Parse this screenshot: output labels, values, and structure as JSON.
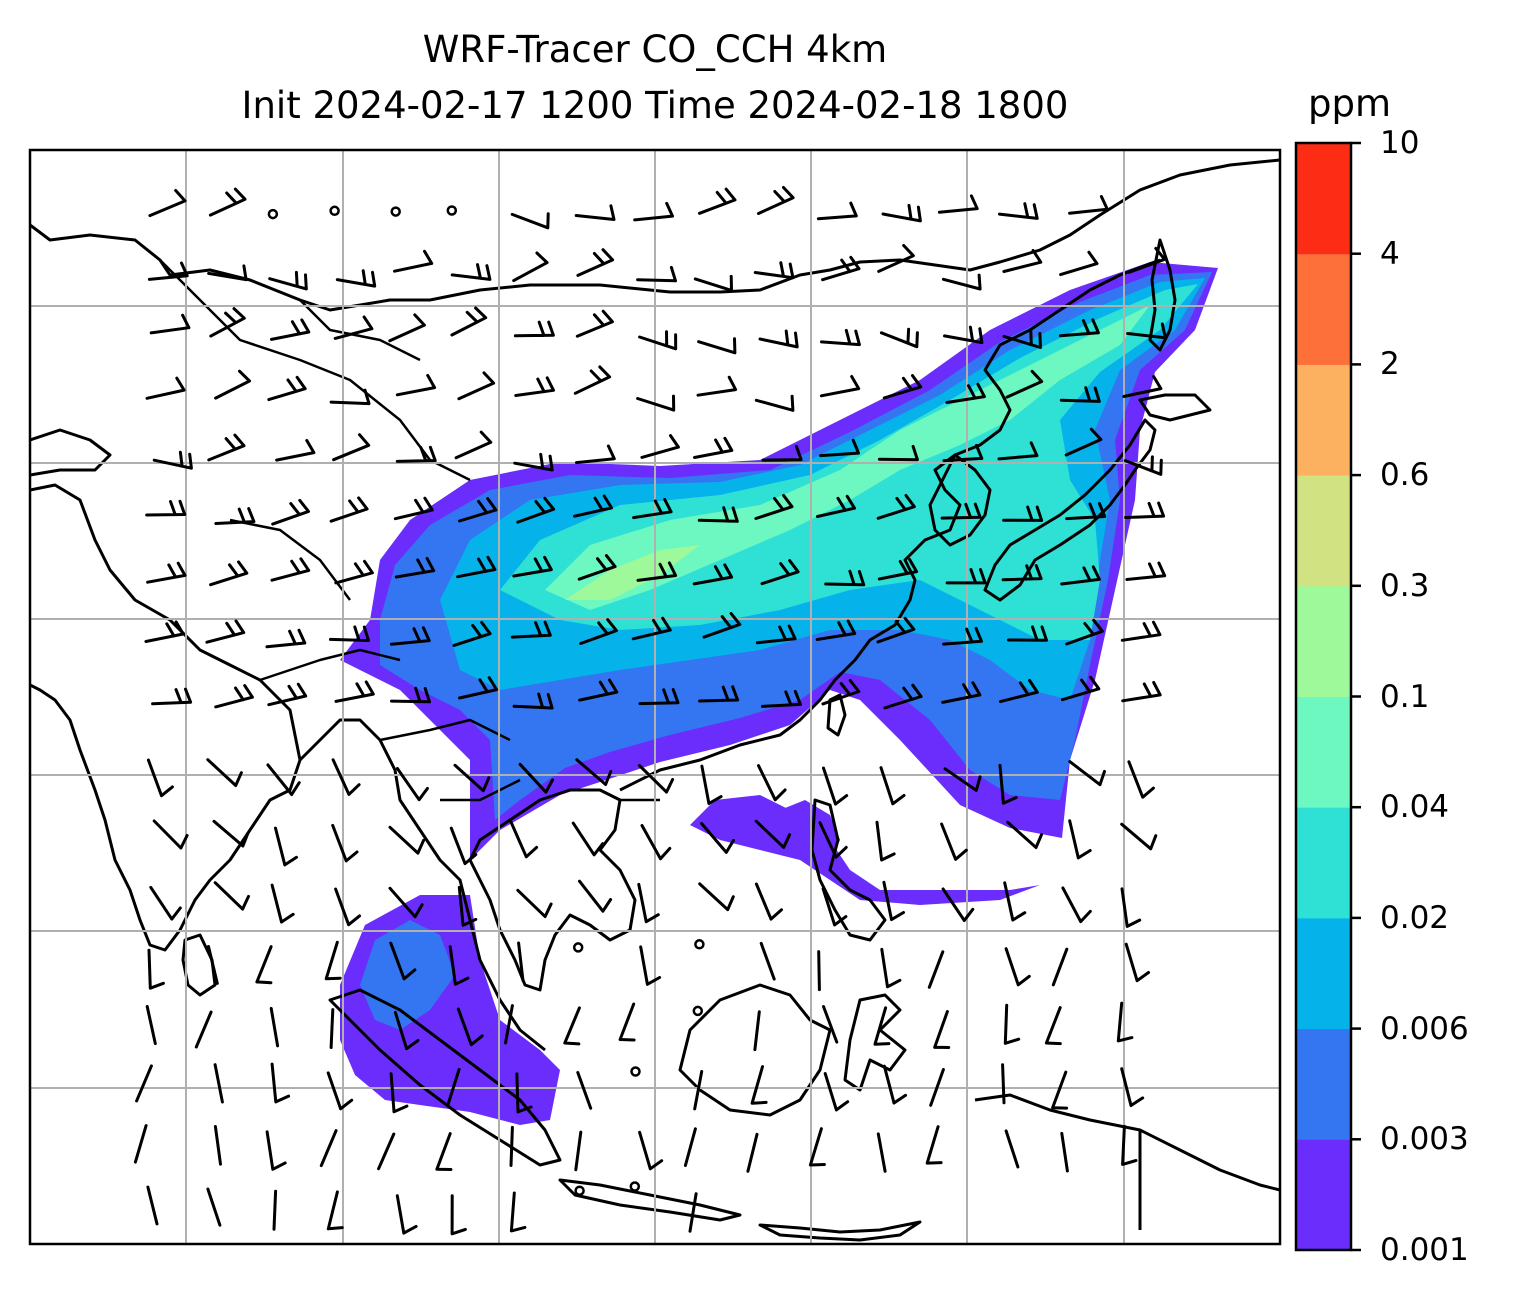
{
  "title": {
    "line1": "WRF-Tracer CO_CCH 4km",
    "line2": "Init 2024-02-17 1200 Time 2024-02-18 1800"
  },
  "colorbar": {
    "unit": "ppm",
    "levels": [
      "0.001",
      "0.003",
      "0.006",
      "0.02",
      "0.04",
      "0.1",
      "0.3",
      "0.6",
      "2",
      "4",
      "10"
    ],
    "colors": [
      "#6a2dfb",
      "#3475f2",
      "#05b2ea",
      "#2fe0d5",
      "#6cf8c0",
      "#9df99a",
      "#d0e282",
      "#fcb161",
      "#fe7039",
      "#fd2c15"
    ]
  },
  "colors": {
    "coast": "#000000",
    "grid": "#b0b0b0",
    "barb": "#000000"
  }
}
